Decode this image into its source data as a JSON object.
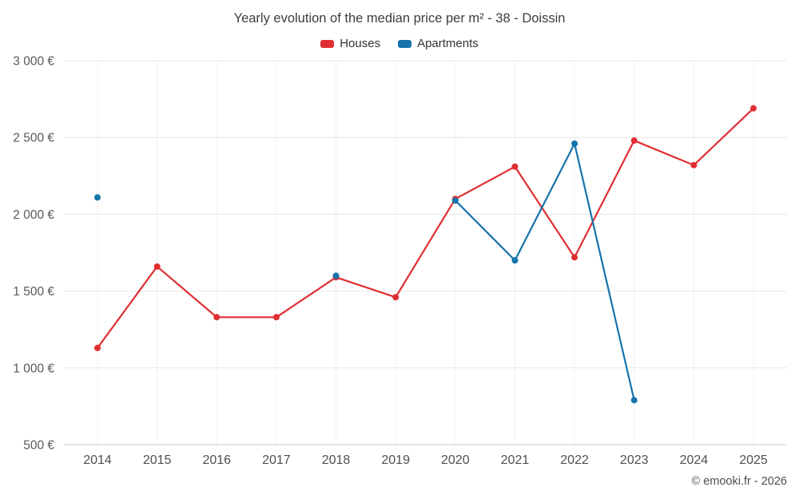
{
  "chart_data": {
    "type": "line",
    "title": "Yearly evolution of the median price per m² - 38 - Doissin",
    "categories": [
      "2014",
      "2015",
      "2016",
      "2017",
      "2018",
      "2019",
      "2020",
      "2021",
      "2022",
      "2023",
      "2024",
      "2025"
    ],
    "series": [
      {
        "name": "Houses",
        "color": "#e02f32",
        "values": [
          1130,
          1660,
          1330,
          1330,
          1590,
          1460,
          2100,
          2310,
          1720,
          2480,
          2320,
          2690
        ]
      },
      {
        "name": "Apartments",
        "color": "#1673ab",
        "values": [
          2110,
          null,
          null,
          null,
          1600,
          null,
          2090,
          1700,
          2460,
          790,
          null,
          null
        ]
      }
    ],
    "ylim": [
      500,
      3000
    ],
    "yticks": [
      {
        "value": 3000,
        "label": "3 000 €"
      },
      {
        "value": 2500,
        "label": "2 500 €"
      },
      {
        "value": 2000,
        "label": "2 000 €"
      },
      {
        "value": 1500,
        "label": "1 500 €"
      },
      {
        "value": 1000,
        "label": "1 000 €"
      },
      {
        "value": 500,
        "label": "500 €"
      }
    ],
    "grid": true,
    "legend_position": "top"
  },
  "footer": {
    "copyright": "© emooki.fr - 2026"
  }
}
